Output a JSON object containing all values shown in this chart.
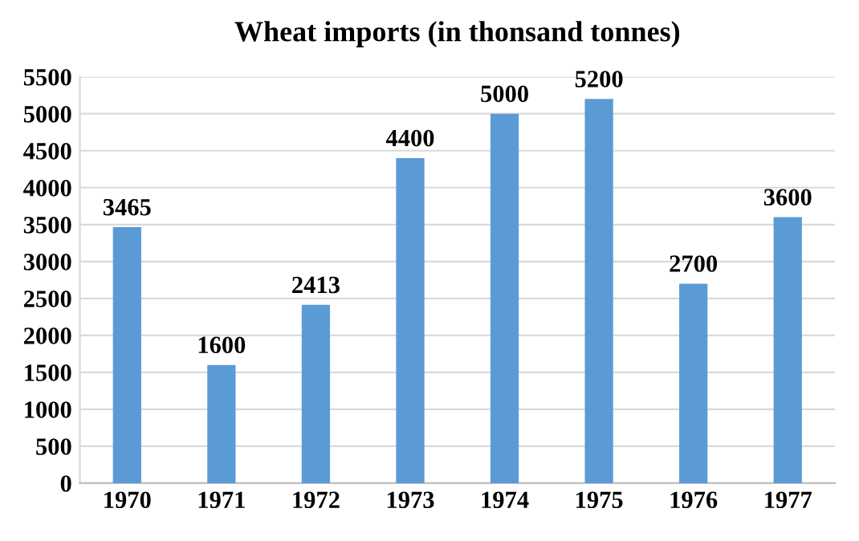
{
  "chart_data": {
    "type": "bar",
    "title": "Wheat imports (in thonsand tonnes)",
    "categories": [
      "1970",
      "1971",
      "1972",
      "1973",
      "1974",
      "1975",
      "1976",
      "1977"
    ],
    "values": [
      3465,
      1600,
      2413,
      4400,
      5000,
      5200,
      2700,
      3600
    ],
    "color": "#5b9bd5",
    "ylim": [
      0,
      5500
    ],
    "yticks": [
      0,
      500,
      1000,
      1500,
      2000,
      2500,
      3000,
      3500,
      4000,
      4500,
      5000,
      5500
    ],
    "grid": "y",
    "data_labels": true
  }
}
